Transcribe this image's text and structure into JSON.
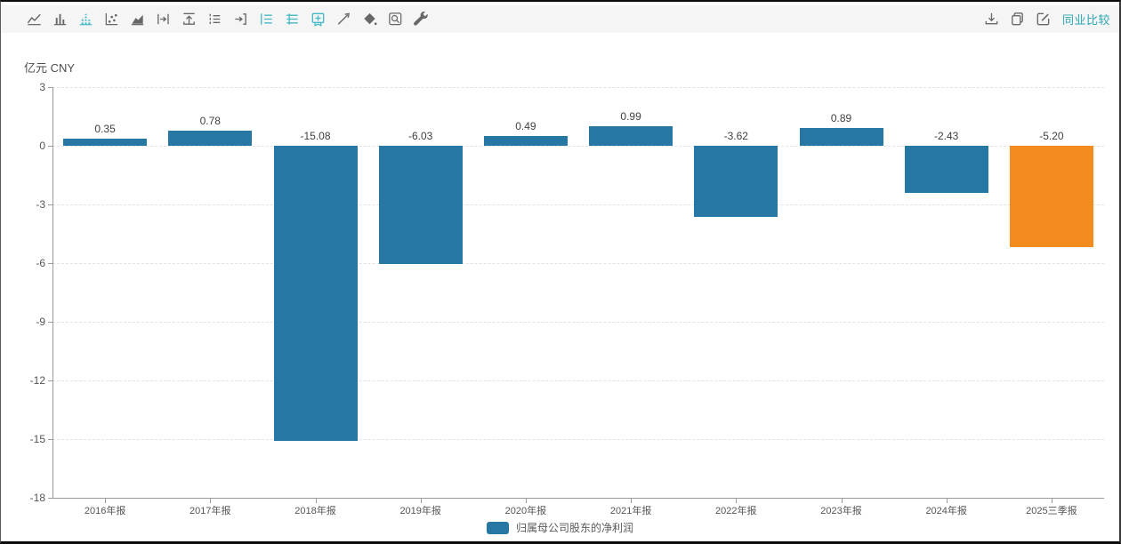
{
  "toolbar": {
    "left_icons": [
      {
        "name": "line-chart-icon",
        "active": false
      },
      {
        "name": "column-chart-icon",
        "active": false
      },
      {
        "name": "column-chart-dashed-icon",
        "active": true
      },
      {
        "name": "scatter-chart-icon",
        "active": false
      },
      {
        "name": "area-chart-icon",
        "active": false
      },
      {
        "name": "step-to-end-icon",
        "active": false
      },
      {
        "name": "export-top-icon",
        "active": false
      },
      {
        "name": "indent-list-icon",
        "active": false
      },
      {
        "name": "step-into-icon",
        "active": false
      },
      {
        "name": "list-view-icon",
        "active": true
      },
      {
        "name": "list-view-alt-icon",
        "active": true
      },
      {
        "name": "add-panel-icon",
        "active": true
      },
      {
        "name": "trendline-icon",
        "active": false
      },
      {
        "name": "fill-style-icon",
        "active": false
      },
      {
        "name": "zoom-area-icon",
        "active": false
      },
      {
        "name": "wrench-icon",
        "active": false
      }
    ],
    "right_icons": [
      {
        "name": "download-icon"
      },
      {
        "name": "copy-icon"
      },
      {
        "name": "edit-chart-icon"
      }
    ],
    "peer_comparison_label": "同业比较"
  },
  "chart_data": {
    "type": "bar",
    "title": "",
    "unit_label": "亿元 CNY",
    "categories": [
      "2016年报",
      "2017年报",
      "2018年报",
      "2019年报",
      "2020年报",
      "2021年报",
      "2022年报",
      "2023年报",
      "2024年报",
      "2025三季报"
    ],
    "series": [
      {
        "name": "归属母公司股东的净利润",
        "values": [
          0.35,
          0.78,
          -15.08,
          -6.03,
          0.49,
          0.99,
          -3.62,
          0.89,
          -2.43,
          -5.2
        ],
        "value_labels": [
          "0.35",
          "0.78",
          "-15.08",
          "-6.03",
          "0.49",
          "0.99",
          "-3.62",
          "0.89",
          "-2.43",
          "-5.20"
        ]
      }
    ],
    "ylim": [
      -18,
      3
    ],
    "yticks": [
      3,
      0,
      -3,
      -6,
      -9,
      -12,
      -15,
      -18
    ],
    "grid": true,
    "grid_style": "dashed",
    "legend_position": "bottom",
    "bar_color": "#2677A4",
    "highlight_color": "#F28C1E",
    "highlight_index": 9
  },
  "colors": {
    "accent_teal": "#45B9C6",
    "link_teal": "#2BA7B4",
    "axis": "#9B9B9B",
    "gridline": "#E2E2E2",
    "toolbar_bg": "#F5F5F5"
  }
}
